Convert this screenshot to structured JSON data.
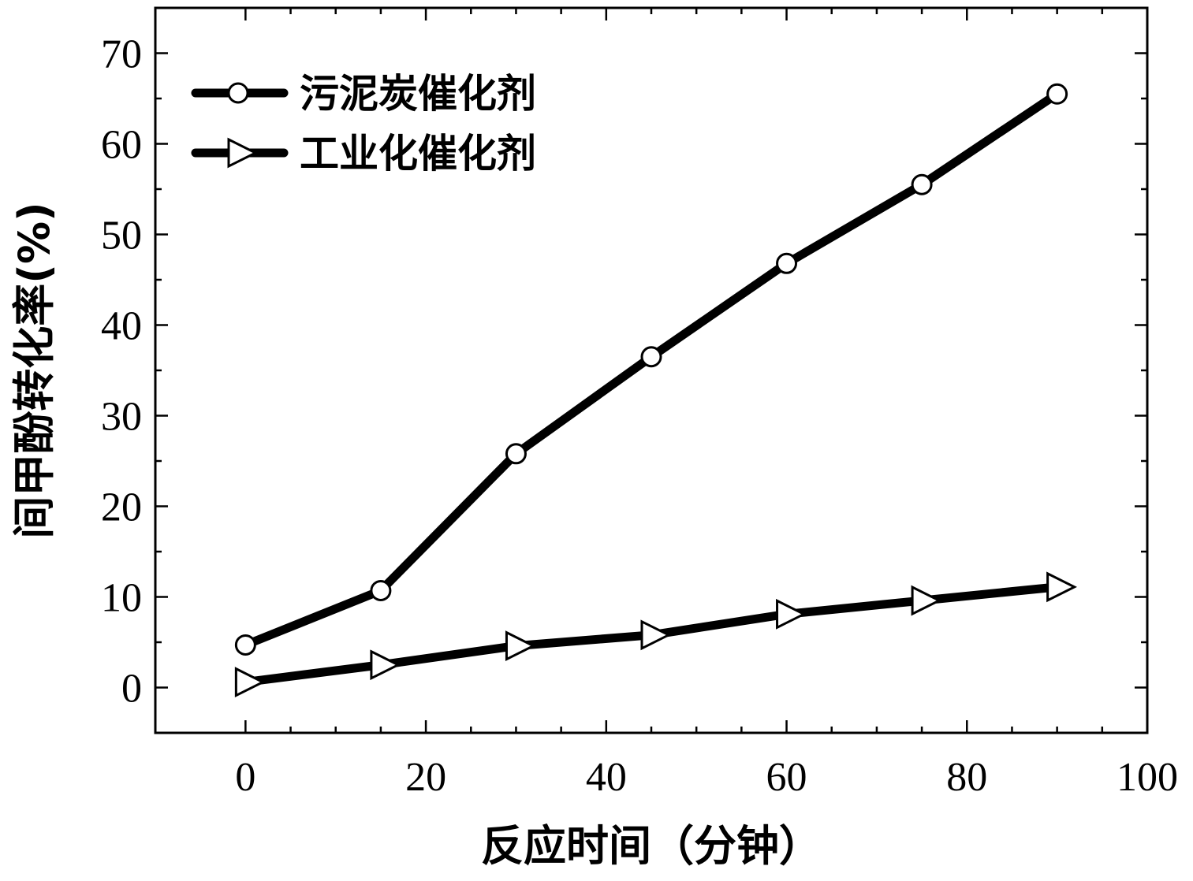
{
  "chart_data": {
    "type": "line",
    "xlabel": "反应时间（分钟）",
    "ylabel": "间甲酚转化率(%)",
    "xlim": [
      -10,
      100
    ],
    "ylim": [
      -5,
      75
    ],
    "x_ticks": [
      0,
      20,
      40,
      60,
      80,
      100
    ],
    "y_ticks": [
      0,
      10,
      20,
      30,
      40,
      50,
      60,
      70
    ],
    "x_tick_labels": [
      "0",
      "20",
      "40",
      "60",
      "80",
      "100"
    ],
    "y_tick_labels": [
      "0",
      "10",
      "20",
      "30",
      "40",
      "50",
      "60",
      "70"
    ],
    "grid": false,
    "legend_position": "top-left",
    "series": [
      {
        "name": "污泥炭催化剂",
        "marker": "circle",
        "color": "#000000",
        "x": [
          0,
          15,
          30,
          45,
          60,
          75,
          90
        ],
        "y": [
          4.7,
          10.7,
          25.8,
          36.5,
          46.8,
          55.5,
          65.5
        ]
      },
      {
        "name": "工业化催化剂",
        "marker": "triangle-right",
        "color": "#000000",
        "x": [
          0,
          15,
          30,
          45,
          60,
          75,
          90
        ],
        "y": [
          0.6,
          2.5,
          4.6,
          5.8,
          8.1,
          9.6,
          11.1
        ]
      }
    ]
  }
}
